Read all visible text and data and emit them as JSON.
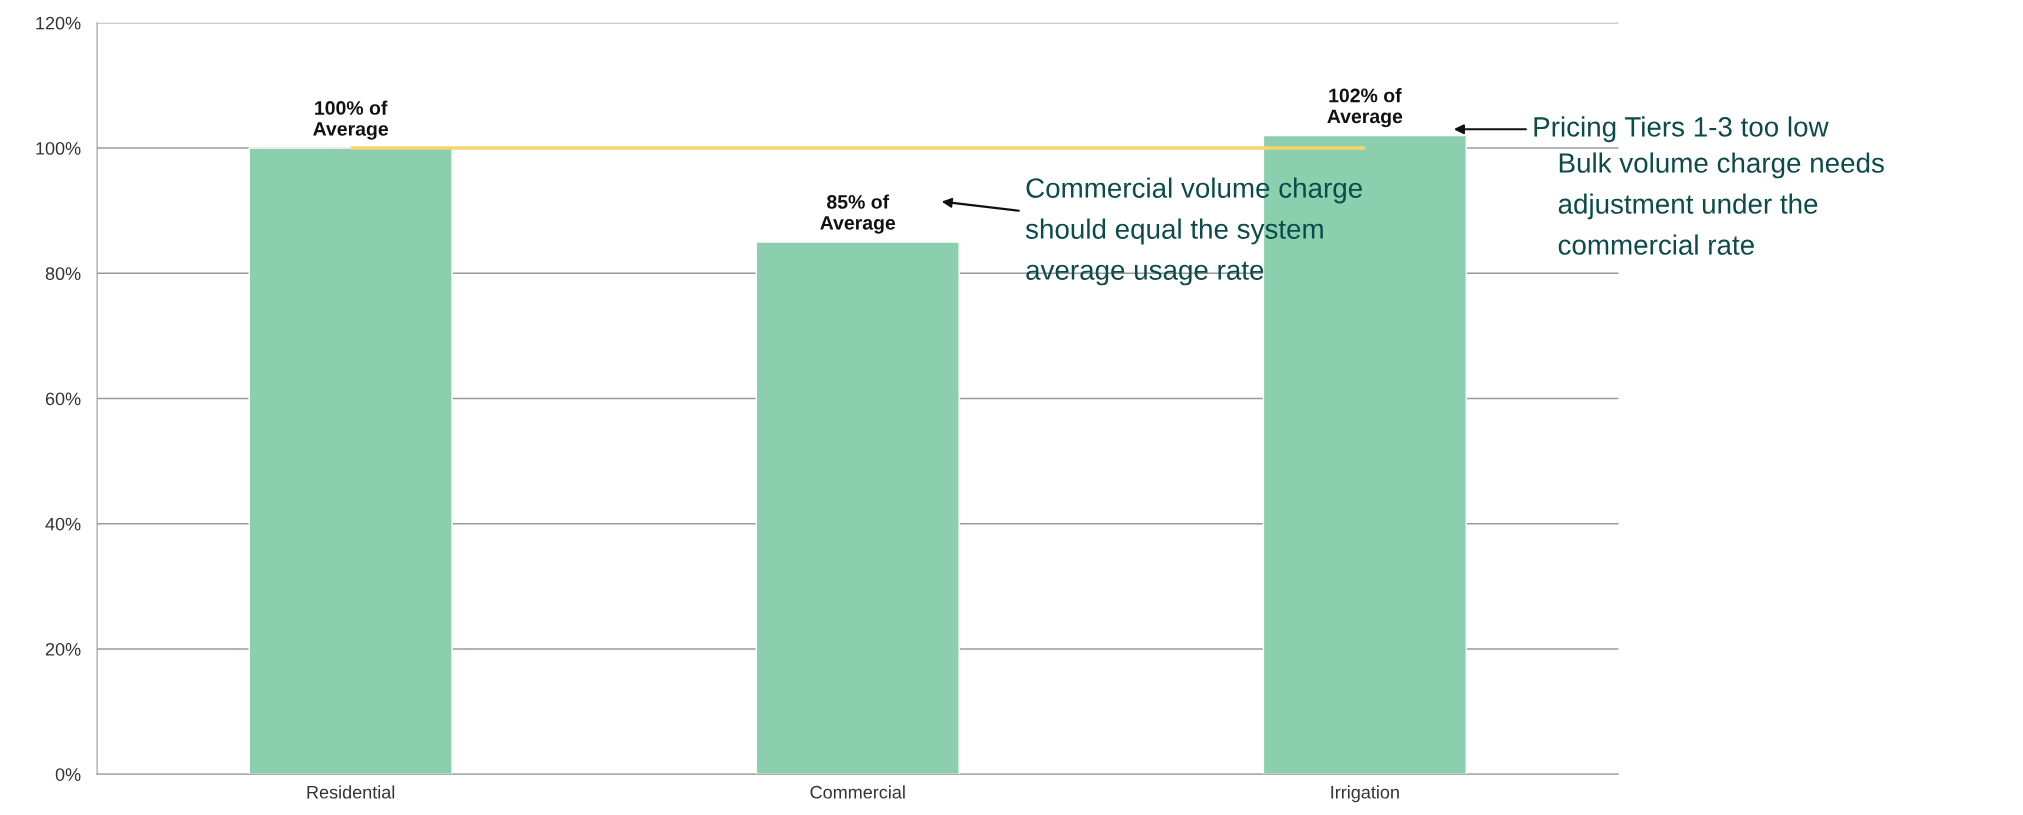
{
  "chart_data": {
    "type": "bar",
    "categories": [
      "Residential",
      "Commercial",
      "Irrigation"
    ],
    "values": [
      100,
      85,
      102
    ],
    "color": "#8ccfae",
    "value_labels": [
      "100% of\nAverage",
      "85% of\nAverage",
      "102% of\nAverage"
    ],
    "ylim": [
      0,
      120
    ],
    "yticks": [
      {
        "value": 0,
        "label": "0%"
      },
      {
        "value": 20,
        "label": "20%"
      },
      {
        "value": 40,
        "label": "40%"
      },
      {
        "value": 60,
        "label": "60%"
      },
      {
        "value": 80,
        "label": "80%"
      },
      {
        "value": 100,
        "label": "100%"
      },
      {
        "value": 120,
        "label": "120%"
      }
    ],
    "grid": "y",
    "ref_lines": [
      {
        "axis": "y",
        "value": 100,
        "color": "#f5d66b"
      }
    ],
    "annotations": [
      "Pricing Tiers 1-3 too low",
      "Commercial volume charge\nshould equal the system\naverage usage rate",
      "Bulk volume charge needs\nadjustment under the\ncommercial rate"
    ]
  }
}
